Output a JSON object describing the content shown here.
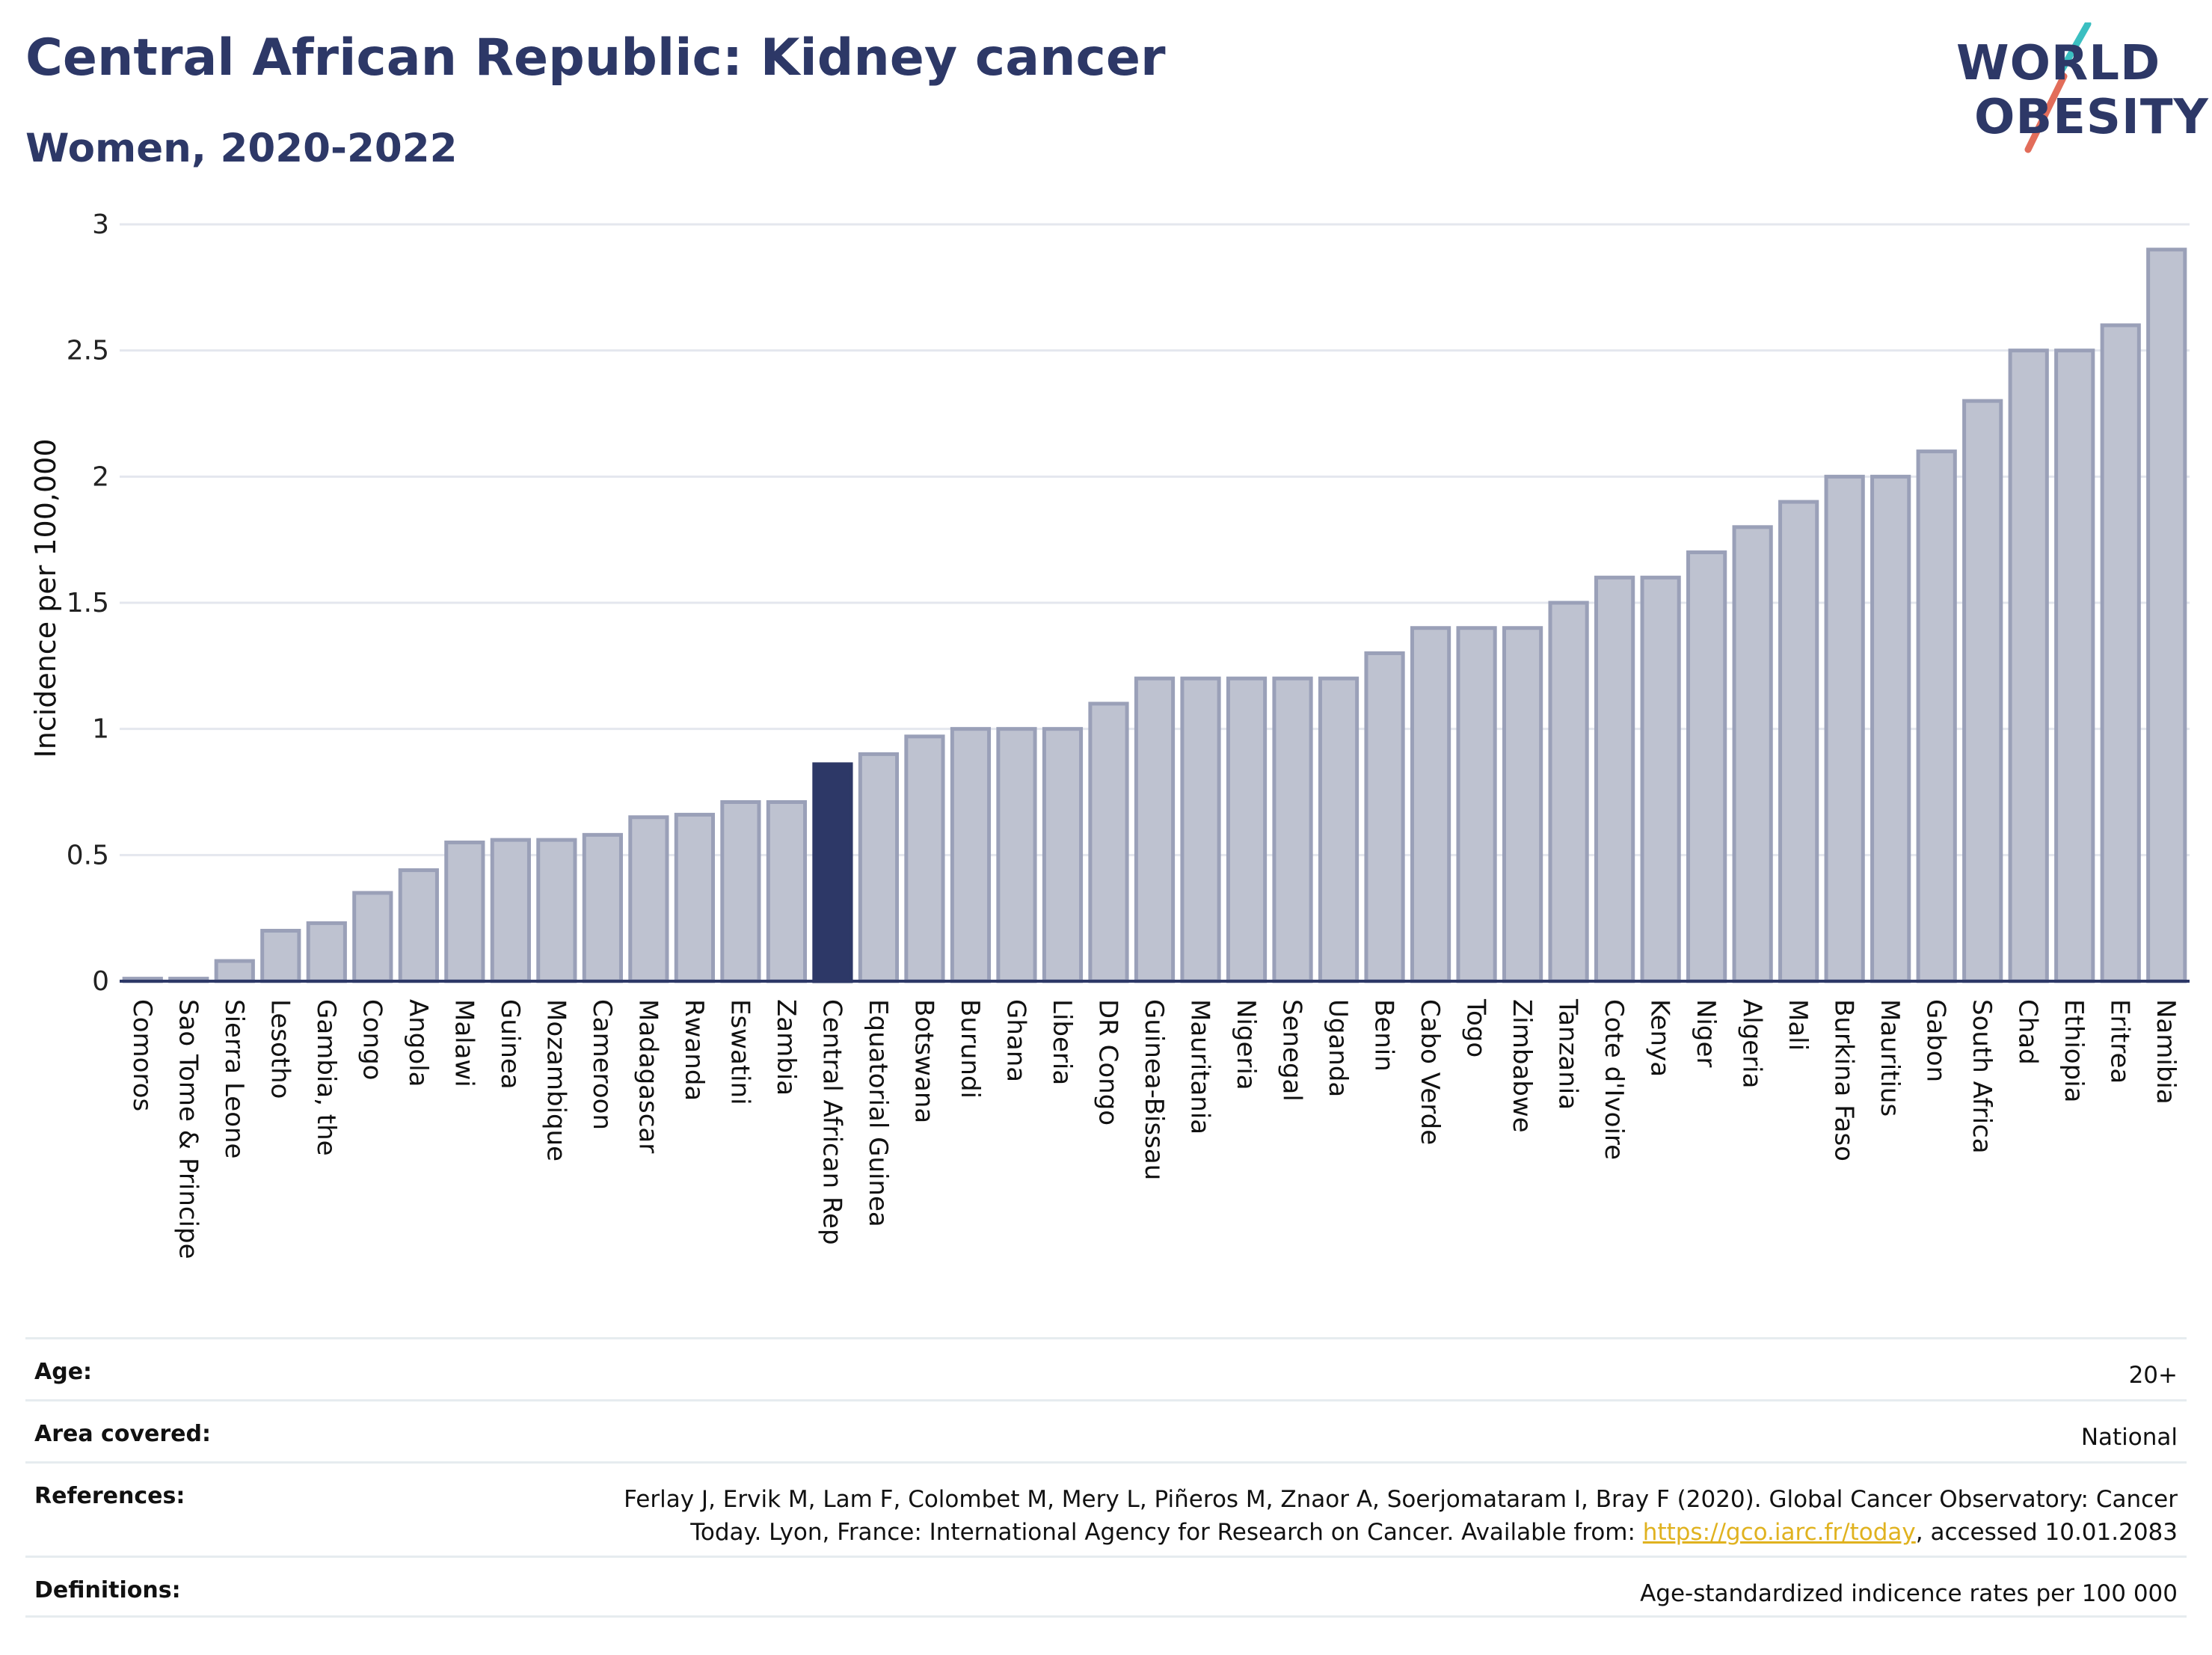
{
  "header": {
    "title": "Central African Republic: Kidney cancer",
    "subtitle": "Women, 2020-2022"
  },
  "logo": {
    "line1": "WORLD",
    "line2": "OBESITY",
    "slash_colors": [
      "#3bbfc1",
      "#e26d5a"
    ],
    "text_color": "#2d3867"
  },
  "chart_data": {
    "type": "bar",
    "title": "Central African Republic: Kidney cancer",
    "subtitle": "Women, 2020-2022",
    "xlabel": "",
    "ylabel": "Incidence per 100,000",
    "ylim": [
      0,
      3
    ],
    "yticks": [
      0,
      0.5,
      1,
      1.5,
      2,
      2.5,
      3
    ],
    "ytick_labels": [
      "0",
      "0.5",
      "1",
      "1.5",
      "2",
      "2.5",
      "3"
    ],
    "grid": true,
    "highlight": "Central African Rep",
    "colors": {
      "bar": "#bec2d0",
      "bar_edge": "#9aa0b8",
      "highlight": "#2d3867"
    },
    "categories": [
      "Comoros",
      "Sao Tome & Principe",
      "Sierra Leone",
      "Lesotho",
      "Gambia, the",
      "Congo",
      "Angola",
      "Malawi",
      "Guinea",
      "Mozambique",
      "Cameroon",
      "Madagascar",
      "Rwanda",
      "Eswatini",
      "Zambia",
      "Central African Rep",
      "Equatorial Guinea",
      "Botswana",
      "Burundi",
      "Ghana",
      "Liberia",
      "DR Congo",
      "Guinea-Bissau",
      "Mauritania",
      "Nigeria",
      "Senegal",
      "Uganda",
      "Benin",
      "Cabo Verde",
      "Togo",
      "Zimbabwe",
      "Tanzania",
      "Cote d'Ivoire",
      "Kenya",
      "Niger",
      "Algeria",
      "Mali",
      "Burkina Faso",
      "Mauritius",
      "Gabon",
      "South Africa",
      "Chad",
      "Ethiopia",
      "Eritrea",
      "Namibia"
    ],
    "values": [
      0.01,
      0.01,
      0.08,
      0.2,
      0.23,
      0.35,
      0.44,
      0.55,
      0.56,
      0.56,
      0.58,
      0.65,
      0.66,
      0.71,
      0.71,
      0.86,
      0.9,
      0.97,
      1.0,
      1.0,
      1.0,
      1.1,
      1.2,
      1.2,
      1.2,
      1.2,
      1.2,
      1.3,
      1.4,
      1.4,
      1.4,
      1.5,
      1.6,
      1.6,
      1.7,
      1.8,
      1.9,
      2.0,
      2.0,
      2.1,
      2.3,
      2.5,
      2.5,
      2.6,
      2.9
    ]
  },
  "info": {
    "age": {
      "label": "Age:",
      "value": "20+"
    },
    "area": {
      "label": "Area covered:",
      "value": "National"
    },
    "references": {
      "label": "References:",
      "text_before": "Ferlay J, Ervik M, Lam F, Colombet M, Mery L, Piñeros M, Znaor A, Soerjomataram I, Bray F (2020). Global Cancer Observatory: Cancer Today. Lyon, France: International Agency for Research on Cancer. Available from: ",
      "link": "https://gco.iarc.fr/today",
      "text_after": ", accessed 10.01.2083"
    },
    "definitions": {
      "label": "Definitions:",
      "value": "Age-standardized indicence rates per 100 000"
    }
  }
}
